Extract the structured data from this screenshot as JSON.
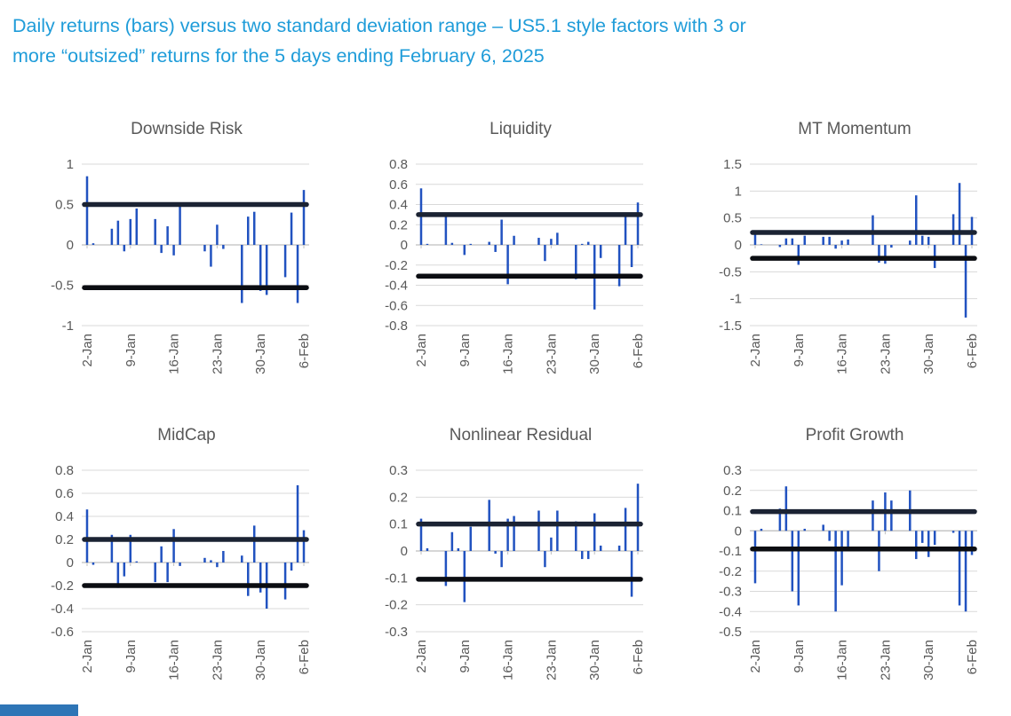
{
  "title": {
    "line1": "Daily returns (bars) versus two standard deviation range – US5.1 style factors with 3 or",
    "line2": "more “outsized” returns for the 5 days ending February 6, 2025"
  },
  "colors": {
    "title": "#1f9cd9",
    "bar": "#2152c0",
    "band_upper": "#1b2333",
    "band_lower": "#0b0d12",
    "grid": "#d9d9d9",
    "axis": "#bfbfbf",
    "label": "#595959",
    "strip": "#2e75b6"
  },
  "x_offsets": [
    0,
    1,
    4,
    5,
    6,
    7,
    8,
    11,
    12,
    13,
    14,
    15,
    19,
    20,
    21,
    22,
    25,
    26,
    27,
    28,
    29,
    32,
    33,
    34,
    35
  ],
  "x_tick_offsets": [
    0,
    7,
    14,
    21,
    28,
    35
  ],
  "x_tick_labels": [
    "2-Jan",
    "9-Jan",
    "16-Jan",
    "23-Jan",
    "30-Jan",
    "6-Feb"
  ],
  "chart_data": [
    {
      "type": "bar",
      "title": "Downside Risk",
      "ylim": [
        -1,
        1
      ],
      "yticks": [
        "1",
        "0.5",
        "0",
        "-0.5",
        "-1"
      ],
      "upper_band": 0.5,
      "lower_band": -0.53,
      "x_tick_labels": [
        "2-Jan",
        "9-Jan",
        "16-Jan",
        "23-Jan",
        "30-Jan",
        "6-Feb"
      ],
      "values": [
        0.85,
        0.02,
        0.2,
        0.3,
        -0.08,
        0.32,
        0.45,
        0.32,
        -0.1,
        0.23,
        -0.13,
        0.5,
        -0.08,
        -0.27,
        0.25,
        -0.05,
        -0.72,
        0.35,
        0.41,
        -0.57,
        -0.62,
        -0.4,
        0.4,
        -0.72,
        0.68
      ]
    },
    {
      "type": "bar",
      "title": "Liquidity",
      "ylim": [
        -0.8,
        0.8
      ],
      "yticks": [
        "0.8",
        "0.6",
        "0.4",
        "0.2",
        "0",
        "-0.2",
        "-0.4",
        "-0.6",
        "-0.8"
      ],
      "upper_band": 0.3,
      "lower_band": -0.31,
      "x_tick_labels": [
        "2-Jan",
        "9-Jan",
        "16-Jan",
        "23-Jan",
        "30-Jan",
        "6-Feb"
      ],
      "values": [
        0.56,
        0.01,
        0.3,
        0.02,
        0.0,
        -0.1,
        0.01,
        0.03,
        -0.07,
        0.25,
        -0.39,
        0.09,
        0.07,
        -0.16,
        0.06,
        0.12,
        -0.34,
        0.01,
        0.03,
        -0.64,
        -0.13,
        -0.41,
        0.3,
        -0.22,
        0.42
      ]
    },
    {
      "type": "bar",
      "title": "MT Momentum",
      "ylim": [
        -1.5,
        1.5
      ],
      "yticks": [
        "1.5",
        "1",
        "0.5",
        "0",
        "-0.5",
        "-1",
        "-1.5"
      ],
      "upper_band": 0.23,
      "lower_band": -0.25,
      "x_tick_labels": [
        "2-Jan",
        "9-Jan",
        "16-Jan",
        "23-Jan",
        "30-Jan",
        "6-Feb"
      ],
      "values": [
        0.22,
        0.01,
        -0.04,
        0.12,
        0.12,
        -0.37,
        0.17,
        0.15,
        0.15,
        -0.07,
        0.08,
        0.1,
        0.55,
        -0.33,
        -0.35,
        -0.05,
        0.08,
        0.92,
        0.17,
        0.15,
        -0.43,
        0.57,
        1.15,
        -1.35,
        0.52
      ]
    },
    {
      "type": "bar",
      "title": "MidCap",
      "ylim": [
        -0.6,
        0.8
      ],
      "yticks": [
        "0.8",
        "0.6",
        "0.4",
        "0.2",
        "0",
        "-0.2",
        "-0.4",
        "-0.6"
      ],
      "upper_band": 0.2,
      "lower_band": -0.2,
      "x_tick_labels": [
        "2-Jan",
        "9-Jan",
        "16-Jan",
        "23-Jan",
        "30-Jan",
        "6-Feb"
      ],
      "values": [
        0.46,
        -0.02,
        0.24,
        -0.22,
        -0.12,
        0.24,
        0.01,
        -0.17,
        0.14,
        -0.17,
        0.29,
        -0.03,
        0.04,
        0.02,
        -0.04,
        0.1,
        0.06,
        -0.29,
        0.32,
        -0.26,
        -0.4,
        -0.32,
        -0.07,
        0.67,
        0.28
      ]
    },
    {
      "type": "bar",
      "title": "Nonlinear Residual",
      "ylim": [
        -0.3,
        0.3
      ],
      "yticks": [
        "0.3",
        "0.2",
        "0.1",
        "0",
        "-0.1",
        "-0.2",
        "-0.3"
      ],
      "upper_band": 0.1,
      "lower_band": -0.105,
      "x_tick_labels": [
        "2-Jan",
        "9-Jan",
        "16-Jan",
        "23-Jan",
        "30-Jan",
        "6-Feb"
      ],
      "values": [
        0.12,
        0.01,
        -0.13,
        0.07,
        0.01,
        -0.19,
        0.09,
        0.19,
        -0.01,
        -0.06,
        0.12,
        0.13,
        0.15,
        -0.06,
        0.05,
        0.15,
        0.11,
        -0.03,
        -0.03,
        0.14,
        0.02,
        0.02,
        0.16,
        -0.17,
        0.25
      ]
    },
    {
      "type": "bar",
      "title": "Profit Growth",
      "ylim": [
        -0.5,
        0.3
      ],
      "yticks": [
        "0.3",
        "0.2",
        "0.1",
        "0",
        "-0.1",
        "-0.2",
        "-0.3",
        "-0.4",
        "-0.5"
      ],
      "upper_band": 0.095,
      "lower_band": -0.09,
      "x_tick_labels": [
        "2-Jan",
        "9-Jan",
        "16-Jan",
        "23-Jan",
        "30-Jan",
        "6-Feb"
      ],
      "values": [
        -0.26,
        0.01,
        0.11,
        0.22,
        -0.3,
        -0.37,
        0.01,
        0.03,
        -0.05,
        -0.4,
        -0.27,
        -0.08,
        0.15,
        -0.2,
        0.19,
        0.15,
        0.2,
        -0.14,
        -0.06,
        -0.13,
        -0.07,
        -0.01,
        -0.37,
        -0.4,
        -0.12
      ]
    }
  ]
}
